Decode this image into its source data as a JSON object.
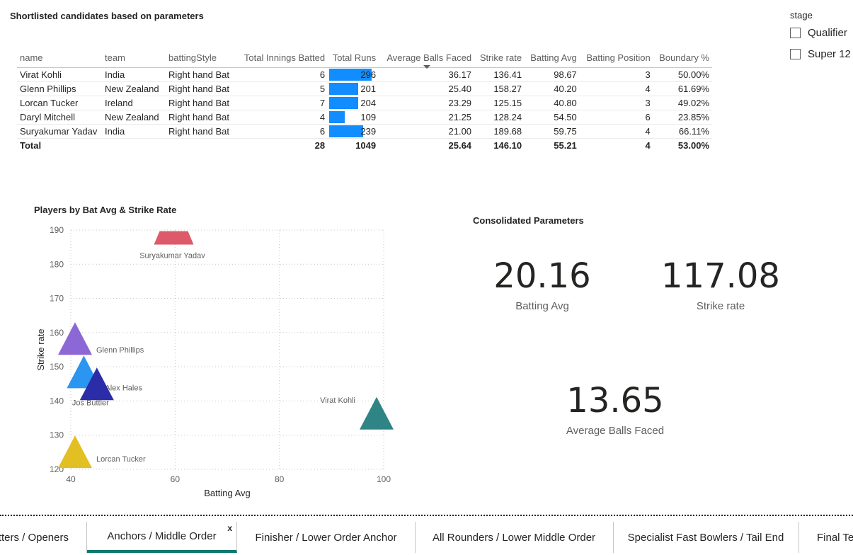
{
  "table": {
    "title": "Shortlisted candidates based on parameters",
    "columns": [
      "name",
      "team",
      "battingStyle",
      "Total Innings Batted",
      "Total Runs",
      "Average Balls Faced",
      "Strike rate",
      "Batting Avg",
      "Batting Position",
      "Boundary %"
    ],
    "rows": [
      {
        "name": "Virat Kohli",
        "team": "India",
        "style": "Right hand Bat",
        "innings": "6",
        "runs": 296,
        "runs_label": "296",
        "abf": "36.17",
        "sr": "136.41",
        "avg": "98.67",
        "pos": "3",
        "boundary": "50.00%"
      },
      {
        "name": "Glenn Phillips",
        "team": "New Zealand",
        "style": "Right hand Bat",
        "innings": "5",
        "runs": 201,
        "runs_label": "201",
        "abf": "25.40",
        "sr": "158.27",
        "avg": "40.20",
        "pos": "4",
        "boundary": "61.69%"
      },
      {
        "name": "Lorcan Tucker",
        "team": "Ireland",
        "style": "Right hand Bat",
        "innings": "7",
        "runs": 204,
        "runs_label": "204",
        "abf": "23.29",
        "sr": "125.15",
        "avg": "40.80",
        "pos": "3",
        "boundary": "49.02%"
      },
      {
        "name": "Daryl Mitchell",
        "team": "New Zealand",
        "style": "Right hand Bat",
        "innings": "4",
        "runs": 109,
        "runs_label": "109",
        "abf": "21.25",
        "sr": "128.24",
        "avg": "54.50",
        "pos": "6",
        "boundary": "23.85%"
      },
      {
        "name": "Suryakumar Yadav",
        "team": "India",
        "style": "Right hand Bat",
        "innings": "6",
        "runs": 239,
        "runs_label": "239",
        "abf": "21.00",
        "sr": "189.68",
        "avg": "59.75",
        "pos": "4",
        "boundary": "66.11%"
      }
    ],
    "total": {
      "label": "Total",
      "innings": "28",
      "runs": "1049",
      "abf": "25.64",
      "sr": "146.10",
      "avg": "55.21",
      "pos": "4",
      "boundary": "53.00%"
    },
    "bar_color": "#118dff"
  },
  "slicer": {
    "title": "stage",
    "options": [
      "Qualifier",
      "Super 12"
    ]
  },
  "chart_data": {
    "type": "scatter",
    "title": "Players by Bat Avg & Strike Rate",
    "xlabel": "Batting Avg",
    "ylabel": "Strike rate",
    "xlim": [
      40,
      100
    ],
    "ylim": [
      120,
      190
    ],
    "xticks": [
      40,
      60,
      80,
      100
    ],
    "yticks": [
      120,
      130,
      140,
      150,
      160,
      170,
      180,
      190
    ],
    "grid": true,
    "points": [
      {
        "label": "Suryakumar Yadav",
        "x": 59.75,
        "y": 189.68,
        "color": "#dd5a6a"
      },
      {
        "label": "Glenn Phillips",
        "x": 40.2,
        "y": 158.27,
        "color": "#8c67d6"
      },
      {
        "label": "Alex Hales",
        "x": 42.5,
        "y": 148.5,
        "color": "#2b95f2"
      },
      {
        "label": "Jos Buttler",
        "x": 45.0,
        "y": 145.0,
        "color": "#2b2da8"
      },
      {
        "label": "Virat Kohli",
        "x": 98.67,
        "y": 136.41,
        "color": "#2f8585"
      },
      {
        "label": "Lorcan Tucker",
        "x": 40.8,
        "y": 125.15,
        "color": "#e2bf22"
      }
    ]
  },
  "cards": {
    "title": "Consolidated Parameters",
    "batting_avg": {
      "value": "20.16",
      "label": "Batting Avg"
    },
    "strike_rate": {
      "value": "117.08",
      "label": "Strike rate"
    },
    "avg_balls": {
      "value": "13.65",
      "label": "Average Balls Faced"
    }
  },
  "tabs": [
    {
      "label": "tters / Openers",
      "active": false
    },
    {
      "label": "Anchors / Middle Order",
      "active": true
    },
    {
      "label": "Finisher / Lower Order Anchor",
      "active": false
    },
    {
      "label": "All Rounders / Lower Middle Order",
      "active": false
    },
    {
      "label": "Specialist Fast Bowlers / Tail End",
      "active": false
    },
    {
      "label": "Final Tea",
      "active": false
    }
  ],
  "tab_close": "x"
}
